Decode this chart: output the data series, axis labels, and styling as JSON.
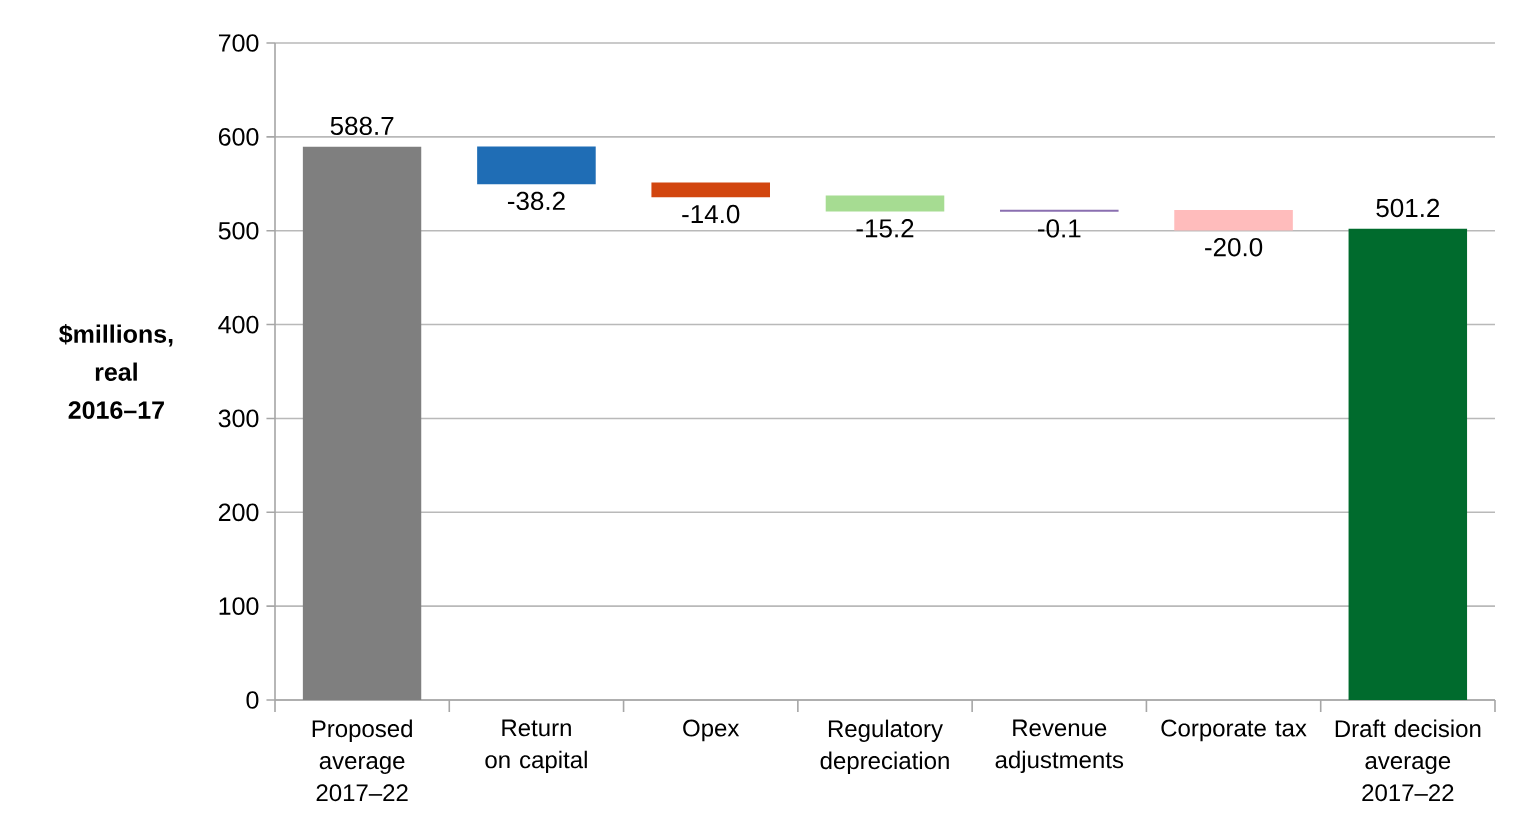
{
  "chart_data": {
    "type": "bar",
    "ylabel": "$millions, real 2016–17",
    "categories": [
      "Proposed average 2017–22",
      "Return on capital",
      "Opex",
      "Regulatory depreciation",
      "Revenue adjustments",
      "Corporate tax",
      "Draft decision average 2017–22"
    ],
    "values": [
      588.7,
      -38.2,
      -14.0,
      -15.2,
      -0.1,
      -20.0,
      501.2
    ],
    "base": [
      0,
      588.7,
      550.5,
      536.5,
      521.3,
      521.2,
      0
    ],
    "colors": [
      "#7f7f7f",
      "#1f6db5",
      "#d2460f",
      "#a6dc92",
      "#8a6fb0",
      "#ffbcbc",
      "#006b2d"
    ],
    "ylim": [
      0,
      700
    ],
    "yticks": [
      0,
      100,
      200,
      300,
      400,
      500,
      600,
      700
    ],
    "value_labels": [
      "588.7",
      "-38.2",
      "-14.0",
      "-15.2",
      "-0.1",
      "-20.0",
      "501.2"
    ],
    "grid": "y"
  }
}
